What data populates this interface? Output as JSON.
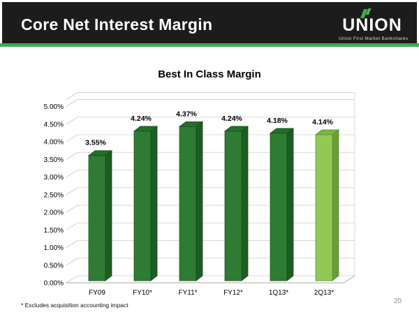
{
  "header": {
    "title": "Core Net Interest Margin",
    "logo": {
      "wordmark": "UNION",
      "tagline": "Union First Market Bankshares"
    }
  },
  "chart_data": {
    "type": "bar",
    "variant": "3d-column",
    "title": "Best In Class Margin",
    "categories": [
      "FY09",
      "FY10*",
      "FY11*",
      "FY12*",
      "1Q13*",
      "2Q13*"
    ],
    "values": [
      3.55,
      4.24,
      4.37,
      4.24,
      4.18,
      4.14
    ],
    "data_labels": [
      "3.55%",
      "4.24%",
      "4.37%",
      "4.24%",
      "4.18%",
      "4.14%"
    ],
    "yticks": [
      "0.00%",
      "0.50%",
      "1.00%",
      "1.50%",
      "2.00%",
      "2.50%",
      "3.00%",
      "3.50%",
      "4.00%",
      "4.50%",
      "5.00%"
    ],
    "ylim": [
      0,
      5
    ],
    "ytick_step": 0.5,
    "grid": true,
    "legend": false,
    "highlight_index": 5,
    "colors": {
      "bar_front": "#2e7c33",
      "bar_side": "#1d5c23",
      "bar_top": "#256d2b",
      "bar_stroke": "#17491d",
      "highlight_front": "#92c853",
      "highlight_side": "#689e39",
      "highlight_top": "#7cb247",
      "highlight_stroke": "#5b8c31",
      "gridline": "#d9d9d9",
      "tick_line": "#cccccc",
      "axis_line": "#a8a8a8",
      "label_text": "#000000"
    }
  },
  "footer": {
    "footnote": "* Excludes acquisition accounting impact",
    "page_number": "20"
  },
  "theme": {
    "header_bg": "#1c1c1c",
    "accent_green": "#3cae4e",
    "page_bg": "#ffffff"
  }
}
